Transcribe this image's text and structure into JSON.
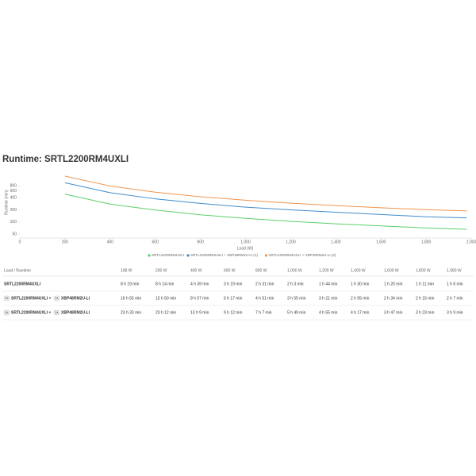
{
  "chart_data": {
    "type": "line",
    "title": "Runtime: SRTL2200RM4UXLI",
    "x_label": "Load (W)",
    "y_label": "Runtime (min)",
    "x": [
      200,
      400,
      600,
      800,
      1000,
      1200,
      1400,
      1600,
      1800,
      1980
    ],
    "series": [
      {
        "name": "SRTL2200RM4UXLI",
        "color": "#5ccf6a",
        "values": [
          494,
          279,
          199,
          151,
          123,
          104,
          90,
          80,
          71,
          66
        ]
      },
      {
        "name": "SRTL2200RM4UXLI + XBP48RM2U-LI (1)",
        "color": "#3f8ccc",
        "values": [
          950,
          537,
          377,
          291,
          235,
          201,
          175,
          154,
          135,
          127
        ]
      },
      {
        "name": "SRTL2200RM4UXLI + XBP48RM2U-LI (2)",
        "color": "#f0954e",
        "values": [
          1392,
          789,
          552,
          427,
          349,
          295,
          257,
          227,
          203,
          189
        ]
      }
    ],
    "xlim": [
      0,
      2000
    ],
    "xticks": [
      0,
      200,
      400,
      600,
      800,
      {
        "value": 1000,
        "label": "1,000"
      },
      {
        "value": 1200,
        "label": "1,200"
      },
      {
        "value": 1400,
        "label": "1,400"
      },
      {
        "value": 1600,
        "label": "1,600"
      },
      {
        "value": 1800,
        "label": "1,800"
      },
      {
        "value": 2000,
        "label": "2,000"
      }
    ],
    "ylim": [
      40,
      2000
    ],
    "yticks": [
      50,
      100,
      200,
      400,
      600,
      800
    ],
    "log_y": true,
    "legend": "bottom"
  },
  "table": {
    "header": [
      "Load / Runtime",
      "198 W",
      "200 W",
      "400 W",
      "600 W",
      "800 W",
      "1,000 W",
      "1,200 W",
      "1,400 W",
      "1,600 W",
      "1,800 W",
      "1,980 W"
    ],
    "rows": [
      {
        "label": [
          {
            "text": "SRTL2200RM4UXLI"
          }
        ],
        "cells": [
          "8 h 19 min",
          "8 h 14 min",
          "4 h 39 min",
          "3 h 19 min",
          "2 h 31 min",
          "2 h 3 min",
          "1 h 44 min",
          "1 h 30 min",
          "1 h 20 min",
          "1 h 11 min",
          "1 h 6 min"
        ]
      },
      {
        "label": [
          {
            "badge": "1x",
            "text": "SRTL2200RM4UXLI +"
          },
          {
            "badge": "1x",
            "text": "XBP48RM2U-LI"
          }
        ],
        "cells": [
          "16 h 55 min",
          "15 h 50 min",
          "8 h 57 min",
          "6 h 17 min",
          "4 h 51 min",
          "3 h 55 min",
          "3 h 21 min",
          "2 h 55 min",
          "2 h 34 min",
          "2 h 15 min",
          "2 h 7 min"
        ]
      },
      {
        "label": [
          {
            "badge": "1x",
            "text": "SRTL2200RM4UXLI +"
          },
          {
            "badge": "1x",
            "text": "XBP48RM2U-LI"
          }
        ],
        "cells": [
          "23 h 33 min",
          "23 h 12 min",
          "13 h 9 min",
          "9 h 12 min",
          "7 h 7 min",
          "5 h 49 min",
          "4 h 55 min",
          "4 h 17 min",
          "3 h 47 min",
          "3 h 23 min",
          "3 h 9 min"
        ]
      }
    ]
  }
}
